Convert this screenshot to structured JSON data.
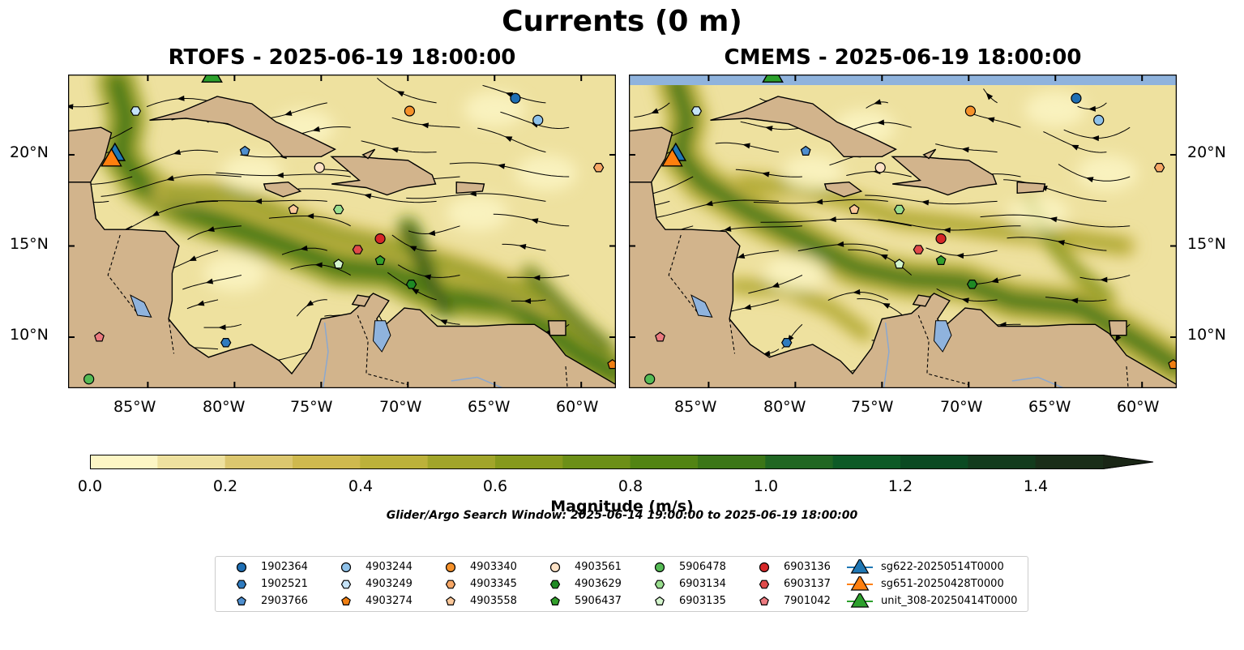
{
  "title": "Currents (0 m)",
  "maps": [
    {
      "id": "rtofs",
      "title": "RTOFS - 2025-06-19 18:00:00"
    },
    {
      "id": "cmems",
      "title": "CMEMS - 2025-06-19 18:00:00"
    }
  ],
  "axes": {
    "lon_labels": [
      "85°W",
      "80°W",
      "75°W",
      "70°W",
      "65°W",
      "60°W"
    ],
    "lat_labels": [
      "20°N",
      "15°N",
      "10°N"
    ]
  },
  "colors": {
    "land": "#d2b48c",
    "inland_water": "#8fb3dd",
    "cmap": [
      "#fdf6c5",
      "#eee19f",
      "#dcc76f",
      "#cfb94e",
      "#bcb13a",
      "#a1a52a",
      "#86991c",
      "#6c8f17",
      "#528413",
      "#3b7617",
      "#206622",
      "#0d5a26",
      "#0b4a22",
      "#133b1d",
      "#1a2e19",
      "#1a2616"
    ]
  },
  "colorbar": {
    "title": "Magnitude (m/s)",
    "ticks": [
      "0.0",
      "0.2",
      "0.4",
      "0.6",
      "0.8",
      "1.0",
      "1.2",
      "1.4"
    ],
    "min": 0.0,
    "max": 1.5,
    "extend": "max"
  },
  "search_window": "Glider/Argo Search Window: 2025-06-14 19:00:00 to 2025-06-19 18:00:00",
  "legend": [
    {
      "label": "1902364",
      "marker": "circle",
      "color": "#1f6fb4"
    },
    {
      "label": "1902521",
      "marker": "hexagon",
      "color": "#2f7bbf"
    },
    {
      "label": "2903766",
      "marker": "pentagon",
      "color": "#4f8fcf"
    },
    {
      "label": "4903244",
      "marker": "circle",
      "color": "#8fc2ea"
    },
    {
      "label": "4903249",
      "marker": "hexagon",
      "color": "#c5e3f8"
    },
    {
      "label": "4903274",
      "marker": "pentagon",
      "color": "#f07f12"
    },
    {
      "label": "4903340",
      "marker": "circle",
      "color": "#f5912a"
    },
    {
      "label": "4903345",
      "marker": "hexagon",
      "color": "#f7a766"
    },
    {
      "label": "4903558",
      "marker": "pentagon",
      "color": "#fbc89a"
    },
    {
      "label": "4903561",
      "marker": "circle",
      "color": "#fde2c6"
    },
    {
      "label": "4903629",
      "marker": "hexagon",
      "color": "#1f8a24"
    },
    {
      "label": "5906437",
      "marker": "pentagon",
      "color": "#33a02c"
    },
    {
      "label": "5906478",
      "marker": "circle",
      "color": "#55bb55"
    },
    {
      "label": "6903134",
      "marker": "hexagon",
      "color": "#99dd8e"
    },
    {
      "label": "6903135",
      "marker": "pentagon",
      "color": "#d4f5cd"
    },
    {
      "label": "6903136",
      "marker": "circle",
      "color": "#d62728"
    },
    {
      "label": "6903137",
      "marker": "hexagon",
      "color": "#e04a4a"
    },
    {
      "label": "7901042",
      "marker": "pentagon",
      "color": "#ec7a80"
    },
    {
      "label": "sg622-20250514T0000",
      "marker": "triangle",
      "color": "#1f77b4"
    },
    {
      "label": "sg651-20250428T0000",
      "marker": "triangle",
      "color": "#ff7f0e"
    },
    {
      "label": "unit_308-20250414T0000",
      "marker": "triangle",
      "color": "#2ca02c"
    }
  ],
  "floats": [
    {
      "label": "1902364",
      "lon": -63.8,
      "lat": 23.1
    },
    {
      "label": "4903244",
      "lon": -62.5,
      "lat": 21.9
    },
    {
      "label": "4903340",
      "lon": -69.9,
      "lat": 22.4
    },
    {
      "label": "4903249",
      "lon": -85.7,
      "lat": 22.4
    },
    {
      "label": "2903766",
      "lon": -79.4,
      "lat": 20.2
    },
    {
      "label": "4903561",
      "lon": -75.1,
      "lat": 19.3
    },
    {
      "label": "4903345",
      "lon": -59.0,
      "lat": 19.3
    },
    {
      "label": "4903558",
      "lon": -76.6,
      "lat": 17.0
    },
    {
      "label": "6903134",
      "lon": -74.0,
      "lat": 17.0
    },
    {
      "label": "6903136",
      "lon": -71.6,
      "lat": 15.4
    },
    {
      "label": "6903137",
      "lon": -72.9,
      "lat": 14.8
    },
    {
      "label": "6903135",
      "lon": -74.0,
      "lat": 14.0
    },
    {
      "label": "5906437",
      "lon": -71.6,
      "lat": 14.2
    },
    {
      "label": "4903629",
      "lon": -69.8,
      "lat": 12.9
    },
    {
      "label": "1902521",
      "lon": -80.5,
      "lat": 9.7
    },
    {
      "label": "7901042",
      "lon": -87.8,
      "lat": 10.0
    },
    {
      "label": "5906478",
      "lon": -88.4,
      "lat": 7.7
    },
    {
      "label": "4903274",
      "lon": -58.2,
      "lat": 8.5
    }
  ],
  "gliders": [
    {
      "label": "sg622-20250514T0000",
      "lon": -86.9,
      "lat": 20.0
    },
    {
      "label": "sg651-20250428T0000",
      "lon": -87.1,
      "lat": 19.7
    },
    {
      "label": "unit_308-20250414T0000",
      "lon": -81.3,
      "lat": 24.3
    }
  ]
}
